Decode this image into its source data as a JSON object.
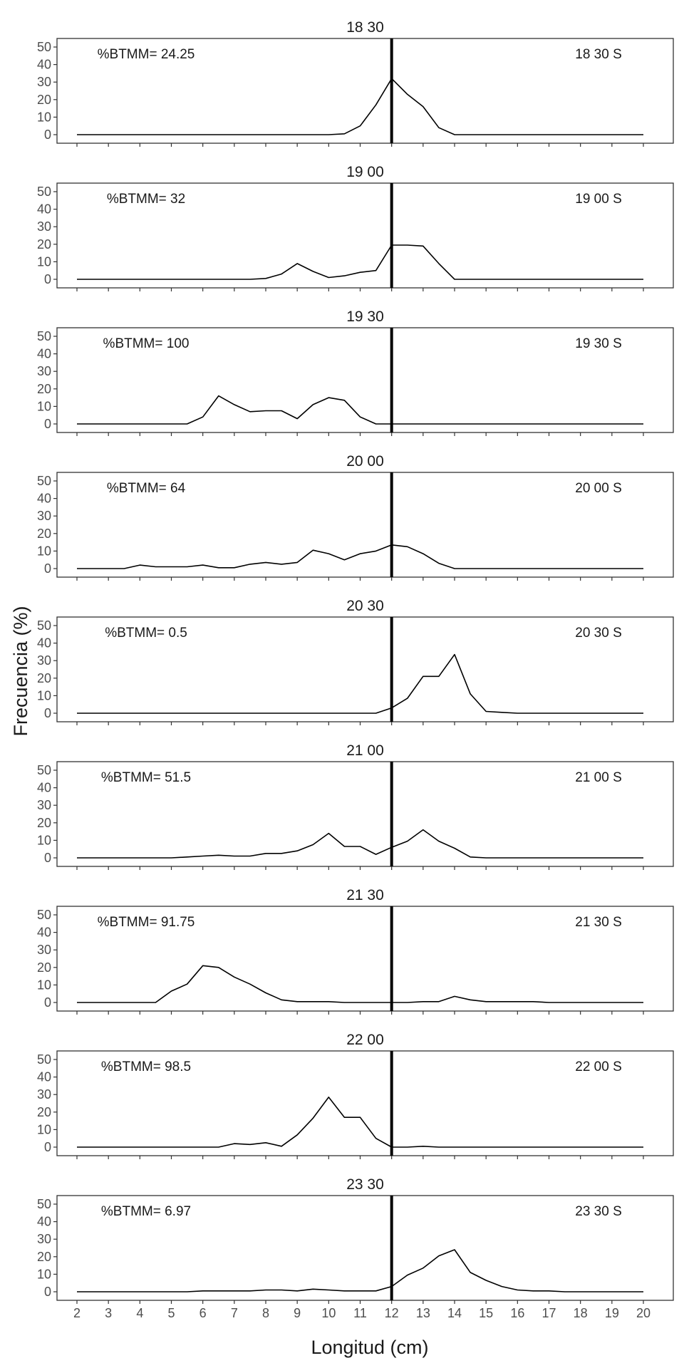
{
  "figure": {
    "xlabel": "Longitud (cm)",
    "ylabel": "Frecuencia (%)"
  },
  "chart_data": {
    "type": "line",
    "xlim": [
      2,
      20
    ],
    "ylim": [
      0,
      50
    ],
    "xticks": [
      2,
      3,
      4,
      5,
      6,
      7,
      8,
      9,
      10,
      11,
      12,
      13,
      14,
      15,
      16,
      17,
      18,
      19,
      20
    ],
    "yticks": [
      0,
      10,
      20,
      30,
      40,
      50
    ],
    "grid": false,
    "vline_x": 12,
    "x": [
      2,
      2.5,
      3,
      3.5,
      4,
      4.5,
      5,
      5.5,
      6,
      6.5,
      7,
      7.5,
      8,
      8.5,
      9,
      9.5,
      10,
      10.5,
      11,
      11.5,
      12,
      12.5,
      13,
      13.5,
      14,
      14.5,
      15,
      15.5,
      16,
      16.5,
      17,
      17.5,
      18,
      18.5,
      19,
      19.5,
      20
    ],
    "panels": [
      {
        "title": "18 30",
        "label": "18 30 S",
        "btmm": "%BTMM= 24.25",
        "values": [
          0,
          0,
          0,
          0,
          0,
          0,
          0,
          0,
          0,
          0,
          0,
          0,
          0,
          0,
          0,
          0,
          0,
          0.5,
          5,
          17,
          32,
          23,
          16,
          4,
          0,
          0,
          0,
          0,
          0,
          0,
          0,
          0,
          0,
          0,
          0,
          0,
          0
        ]
      },
      {
        "title": "19 00",
        "label": "19 00 S",
        "btmm": "%BTMM= 32",
        "values": [
          0,
          0,
          0,
          0,
          0,
          0,
          0,
          0,
          0,
          0,
          0,
          0,
          0.5,
          3,
          9,
          4.5,
          1,
          2,
          4,
          5,
          19.5,
          19.5,
          19,
          9,
          0,
          0,
          0,
          0,
          0,
          0,
          0,
          0,
          0,
          0,
          0,
          0,
          0
        ]
      },
      {
        "title": "19 30",
        "label": "19 30 S",
        "btmm": "%BTMM= 100",
        "values": [
          0,
          0,
          0,
          0,
          0,
          0,
          0,
          0,
          4,
          16,
          11,
          7,
          7.5,
          7.5,
          3,
          11,
          15,
          13.5,
          4,
          0,
          0,
          0,
          0,
          0,
          0,
          0,
          0,
          0,
          0,
          0,
          0,
          0,
          0,
          0,
          0,
          0,
          0
        ]
      },
      {
        "title": "20 00",
        "label": "20 00 S",
        "btmm": "%BTMM= 64",
        "values": [
          0,
          0,
          0,
          0,
          2,
          1,
          1,
          1,
          2,
          0.5,
          0.5,
          2.5,
          3.5,
          2.5,
          3.5,
          10.5,
          8.5,
          5,
          8.5,
          10,
          13.5,
          12.5,
          8.5,
          3,
          0,
          0,
          0,
          0,
          0,
          0,
          0,
          0,
          0,
          0,
          0,
          0,
          0
        ]
      },
      {
        "title": "20 30",
        "label": "20 30 S",
        "btmm": "%BTMM= 0.5",
        "values": [
          0,
          0,
          0,
          0,
          0,
          0,
          0,
          0,
          0,
          0,
          0,
          0,
          0,
          0,
          0,
          0,
          0,
          0,
          0,
          0,
          3,
          8.5,
          21,
          21,
          33.5,
          11,
          1,
          0.5,
          0,
          0,
          0,
          0,
          0,
          0,
          0,
          0,
          0
        ]
      },
      {
        "title": "21 00",
        "label": "21 00 S",
        "btmm": "%BTMM= 51.5",
        "values": [
          0,
          0,
          0,
          0,
          0,
          0,
          0,
          0.5,
          1,
          1.5,
          1,
          1,
          2.5,
          2.5,
          4,
          7.5,
          14,
          6.5,
          6.5,
          2,
          6,
          9.5,
          16,
          9.5,
          5.5,
          0.5,
          0,
          0,
          0,
          0,
          0,
          0,
          0,
          0,
          0,
          0,
          0
        ]
      },
      {
        "title": "21 30",
        "label": "21 30 S",
        "btmm": "%BTMM= 91.75",
        "values": [
          0,
          0,
          0,
          0,
          0,
          0,
          6.5,
          10.5,
          21,
          20,
          14.5,
          10.5,
          5.5,
          1.5,
          0.5,
          0.5,
          0.5,
          0,
          0,
          0,
          0,
          0,
          0.5,
          0.5,
          3.5,
          1.5,
          0.5,
          0.5,
          0.5,
          0.5,
          0,
          0,
          0,
          0,
          0,
          0,
          0
        ]
      },
      {
        "title": "22 00",
        "label": "22 00 S",
        "btmm": "%BTMM= 98.5",
        "values": [
          0,
          0,
          0,
          0,
          0,
          0,
          0,
          0,
          0,
          0,
          2,
          1.5,
          2.5,
          0.5,
          7,
          16.5,
          28.5,
          17,
          17,
          5,
          0,
          0,
          0.5,
          0,
          0,
          0,
          0,
          0,
          0,
          0,
          0,
          0,
          0,
          0,
          0,
          0,
          0
        ]
      },
      {
        "title": "23 30",
        "label": "23 30 S",
        "btmm": "%BTMM= 6.97",
        "values": [
          0,
          0,
          0,
          0,
          0,
          0,
          0,
          0,
          0.5,
          0.5,
          0.5,
          0.5,
          1,
          1,
          0.5,
          1.5,
          1,
          0.5,
          0.5,
          0.5,
          3,
          9.5,
          13.5,
          20.5,
          24,
          11,
          6.5,
          3,
          1,
          0.5,
          0.5,
          0,
          0,
          0,
          0,
          0,
          0
        ]
      }
    ]
  }
}
